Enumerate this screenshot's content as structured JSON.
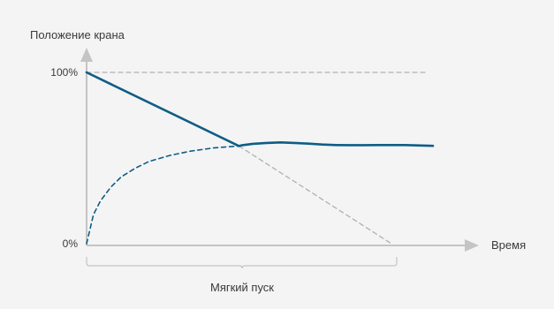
{
  "chart_data": {
    "type": "line",
    "ylabel": "Положение крана",
    "xlabel": "Время",
    "yticks": [
      {
        "value": 100,
        "label": "100%"
      },
      {
        "value": 0,
        "label": "0%"
      }
    ],
    "ylim": [
      0,
      100
    ],
    "grid": false,
    "annotations": [
      {
        "label": "Мягкий пуск",
        "span": "from origin to the end of the ramp"
      }
    ],
    "series": [
      {
        "style": "solid",
        "color": "#0f5d86",
        "points": [
          [
            0,
            100
          ],
          [
            44,
            57
          ],
          [
            45,
            57.5
          ],
          [
            48,
            58.3
          ],
          [
            52,
            58.8
          ],
          [
            56,
            59.1
          ],
          [
            60,
            58.8
          ],
          [
            64,
            58.4
          ],
          [
            68,
            57.9
          ],
          [
            72,
            57.6
          ],
          [
            76,
            57.5
          ],
          [
            80,
            57.5
          ],
          [
            84,
            57.6
          ],
          [
            88,
            57.6
          ],
          [
            92,
            57.6
          ],
          [
            100,
            57.1
          ]
        ]
      },
      {
        "style": "dashed",
        "color": "#0f5d86",
        "points": [
          [
            0,
            0
          ],
          [
            2,
            17
          ],
          [
            4,
            25
          ],
          [
            7,
            33
          ],
          [
            10,
            39
          ],
          [
            14,
            44
          ],
          [
            18,
            48
          ],
          [
            24,
            51.5
          ],
          [
            30,
            54
          ],
          [
            37,
            56
          ],
          [
            44,
            57
          ]
        ]
      },
      {
        "style": "dashed",
        "color": "#b0b0b0",
        "points": [
          [
            44,
            57
          ],
          [
            88,
            0
          ]
        ]
      },
      {
        "style": "dashed",
        "color": "#b0b0b0",
        "points": [
          [
            0,
            100
          ],
          [
            98,
            100
          ]
        ]
      }
    ]
  }
}
